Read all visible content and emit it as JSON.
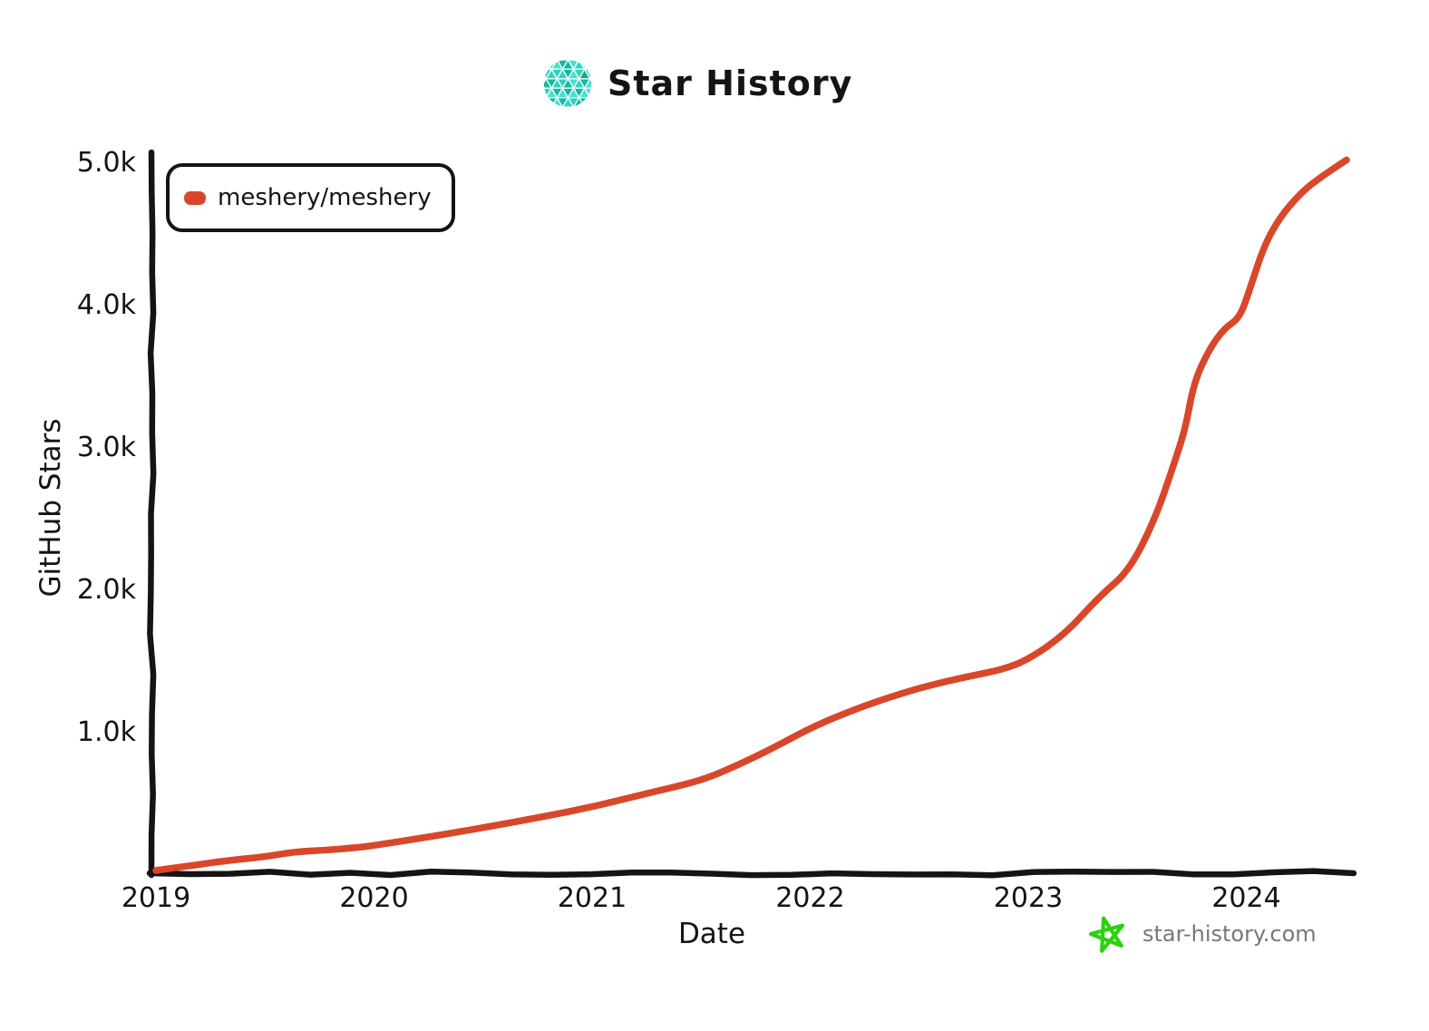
{
  "header": {
    "title": "Star History"
  },
  "chart_data": {
    "type": "line",
    "title": "Star History",
    "xlabel": "Date",
    "ylabel": "GitHub Stars",
    "x_ticks": [
      "2019",
      "2020",
      "2021",
      "2022",
      "2023",
      "2024"
    ],
    "x_tick_values": [
      2019,
      2020,
      2021,
      2022,
      2023,
      2024
    ],
    "y_ticks": [
      {
        "label": "1.0k",
        "value": 1000
      },
      {
        "label": "2.0k",
        "value": 2000
      },
      {
        "label": "3.0k",
        "value": 3000
      },
      {
        "label": "4.0k",
        "value": 4000
      },
      {
        "label": "5.0k",
        "value": 5000
      }
    ],
    "xlim": [
      2019,
      2024.5
    ],
    "ylim": [
      0,
      5050
    ],
    "grid": false,
    "legend_position": "top-left",
    "series": [
      {
        "name": "meshery/meshery",
        "color": "#d9472b",
        "points": [
          [
            2019.0,
            20
          ],
          [
            2019.17,
            55
          ],
          [
            2019.33,
            90
          ],
          [
            2019.5,
            115
          ],
          [
            2019.63,
            150
          ],
          [
            2019.78,
            162
          ],
          [
            2019.92,
            180
          ],
          [
            2020.0,
            195
          ],
          [
            2020.25,
            255
          ],
          [
            2020.5,
            320
          ],
          [
            2020.75,
            390
          ],
          [
            2021.0,
            465
          ],
          [
            2021.25,
            560
          ],
          [
            2021.5,
            650
          ],
          [
            2021.67,
            760
          ],
          [
            2021.83,
            880
          ],
          [
            2022.0,
            1020
          ],
          [
            2022.17,
            1130
          ],
          [
            2022.33,
            1220
          ],
          [
            2022.5,
            1300
          ],
          [
            2022.63,
            1350
          ],
          [
            2022.75,
            1390
          ],
          [
            2022.88,
            1430
          ],
          [
            2023.0,
            1500
          ],
          [
            2023.17,
            1680
          ],
          [
            2023.33,
            1950
          ],
          [
            2023.46,
            2120
          ],
          [
            2023.58,
            2480
          ],
          [
            2023.67,
            2880
          ],
          [
            2023.72,
            3120
          ],
          [
            2023.76,
            3450
          ],
          [
            2023.83,
            3680
          ],
          [
            2023.9,
            3830
          ],
          [
            2023.97,
            3900
          ],
          [
            2024.02,
            4120
          ],
          [
            2024.08,
            4400
          ],
          [
            2024.15,
            4600
          ],
          [
            2024.25,
            4780
          ],
          [
            2024.35,
            4900
          ],
          [
            2024.46,
            5010
          ]
        ]
      }
    ]
  },
  "footer": {
    "site": "star-history.com",
    "star_icon_color": "#2bd30b",
    "text_color": "#777777"
  },
  "logo": {
    "name": "star-history-logo",
    "colors": [
      "#14b8a6",
      "#2dd4bf",
      "#49e0cd",
      "#0fa894"
    ]
  },
  "colors": {
    "axis": "#141414",
    "text": "#141414",
    "background": "#ffffff"
  }
}
